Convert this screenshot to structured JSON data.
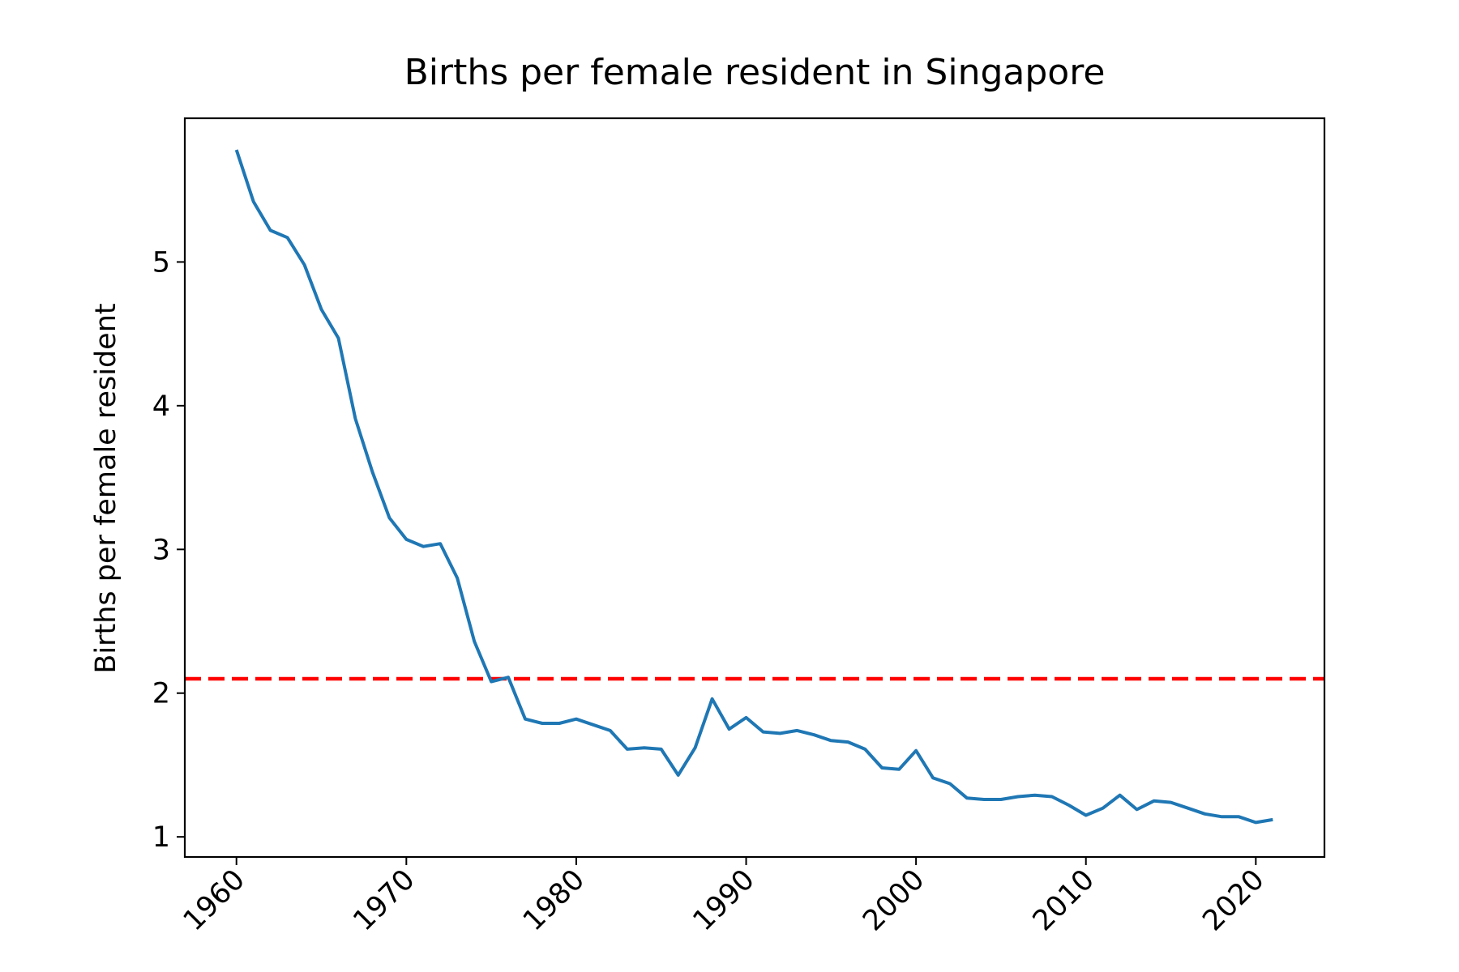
{
  "chart_data": {
    "type": "line",
    "title": "Births per female resident in Singapore",
    "xlabel": "",
    "ylabel": "Births per female resident",
    "xlim": [
      1956.96,
      2024.04
    ],
    "ylim": [
      0.86,
      6.0
    ],
    "x_ticks": [
      1960,
      1970,
      1980,
      1990,
      2000,
      2010,
      2020
    ],
    "y_ticks": [
      1,
      2,
      3,
      4,
      5
    ],
    "grid": false,
    "legend": "none",
    "series": [
      {
        "color": "#1f77b4",
        "x": [
          1960,
          1961,
          1962,
          1963,
          1964,
          1965,
          1966,
          1967,
          1968,
          1969,
          1970,
          1971,
          1972,
          1973,
          1974,
          1975,
          1976,
          1977,
          1978,
          1979,
          1980,
          1981,
          1982,
          1983,
          1984,
          1985,
          1986,
          1987,
          1988,
          1989,
          1990,
          1991,
          1992,
          1993,
          1994,
          1995,
          1996,
          1997,
          1998,
          1999,
          2000,
          2001,
          2002,
          2003,
          2004,
          2005,
          2006,
          2007,
          2008,
          2009,
          2010,
          2011,
          2012,
          2013,
          2014,
          2015,
          2016,
          2017,
          2018,
          2019,
          2020,
          2021
        ],
        "y": [
          5.78,
          5.42,
          5.22,
          5.17,
          4.98,
          4.67,
          4.47,
          3.91,
          3.54,
          3.22,
          3.07,
          3.02,
          3.04,
          2.8,
          2.36,
          2.08,
          2.11,
          1.82,
          1.79,
          1.79,
          1.82,
          1.78,
          1.74,
          1.61,
          1.62,
          1.61,
          1.43,
          1.62,
          1.96,
          1.75,
          1.83,
          1.73,
          1.72,
          1.74,
          1.71,
          1.67,
          1.66,
          1.61,
          1.48,
          1.47,
          1.6,
          1.41,
          1.37,
          1.27,
          1.26,
          1.26,
          1.28,
          1.29,
          1.28,
          1.22,
          1.15,
          1.2,
          1.29,
          1.19,
          1.25,
          1.24,
          1.2,
          1.16,
          1.14,
          1.14,
          1.1,
          1.12
        ]
      }
    ],
    "reference_lines": [
      {
        "y": 2.1,
        "color": "#ff0000",
        "style": "dashed"
      }
    ]
  }
}
